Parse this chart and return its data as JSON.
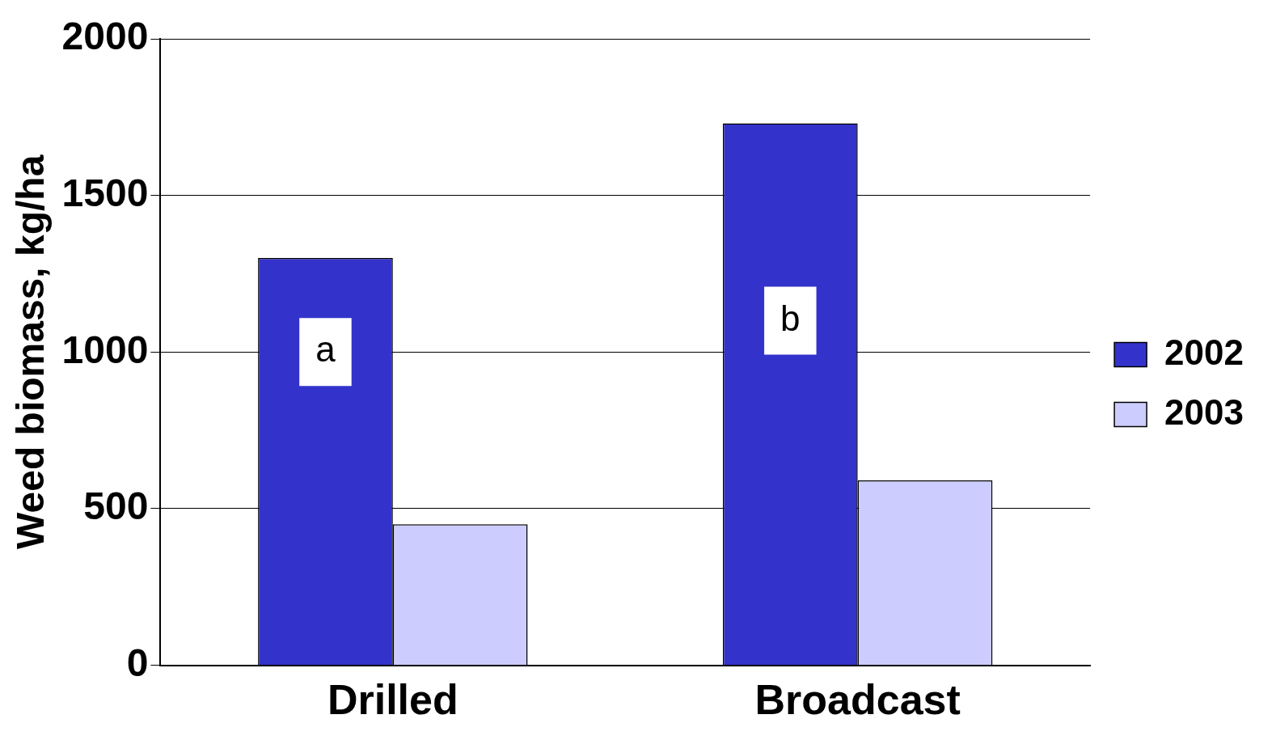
{
  "chart_data": {
    "type": "bar",
    "ylabel": "Weed biomass, kg/ha",
    "categories": [
      "Drilled",
      "Broadcast"
    ],
    "series": [
      {
        "name": "2002",
        "color": "#3333cc",
        "values": [
          1300,
          1730
        ]
      },
      {
        "name": "2003",
        "color": "#ccccff",
        "values": [
          450,
          590
        ]
      }
    ],
    "ylim": [
      0,
      2000
    ],
    "yticks": [
      0,
      500,
      1000,
      1500,
      2000
    ],
    "grid": "y",
    "legend": "right",
    "annotations": [
      {
        "text": "a",
        "x": "Drilled",
        "y": 1000
      },
      {
        "text": "b",
        "x": "Broadcast",
        "y": 1100
      }
    ]
  }
}
